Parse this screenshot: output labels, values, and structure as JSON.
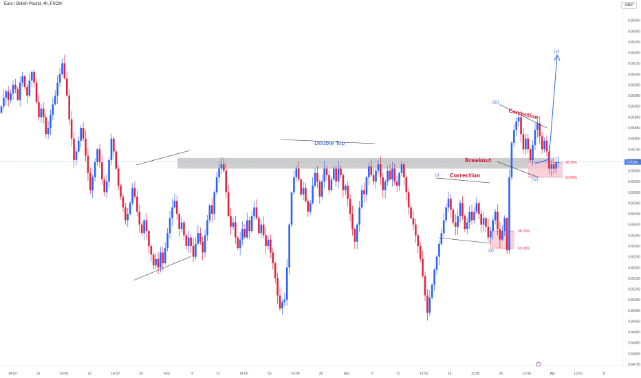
{
  "header": {
    "title": "Euro / British Pound, 4h, FXCM",
    "currency": "GBP"
  },
  "colors": {
    "up": "#2962ff",
    "down": "#e0243f",
    "zone": "#9e9e9e",
    "fib_zone": "#f7c6cf",
    "annot_red": "#d11e35",
    "annot_blue": "#1e55d0",
    "price_line": "#4a7ee8"
  },
  "chart_data": {
    "type": "candlestick",
    "symbol": "EUR/GBP",
    "timeframe": "4h",
    "ylim": [
      0.8475,
      0.864
    ],
    "y_ticks": [
      "0.86350",
      "0.86300",
      "0.86250",
      "0.86200",
      "0.86150",
      "0.86100",
      "0.86050",
      "0.86000",
      "0.85950",
      "0.85900",
      "0.85850",
      "0.85800",
      "0.85750",
      "0.85700",
      "0.85650",
      "0.85600",
      "0.85550",
      "0.85500",
      "0.85450",
      "0.85400",
      "0.85350",
      "0.85300",
      "0.85250",
      "0.85200",
      "0.85150",
      "0.85100",
      "0.85050",
      "0.85000",
      "0.84950",
      "0.84900",
      "0.84850",
      "0.84800",
      "0.84750"
    ],
    "x_ticks": [
      "14:00",
      "15",
      "14:00",
      "22",
      "14:00",
      "29",
      "Feb",
      "6",
      "12",
      "14:00",
      "19",
      "14:00",
      "26",
      "Mar",
      "6",
      "11",
      "13:00",
      "18",
      "13:00",
      "25",
      "13:00",
      "Apr",
      "13:00",
      "8"
    ],
    "current_price": "0.85691",
    "resistance_zone": [
      0.8566,
      0.8571
    ],
    "annotations": {
      "double_top": "Double Top",
      "breakout": "Breakout",
      "correction_1": "Correction",
      "correction_2": "Correction",
      "fib_low_382": "38.20%",
      "fib_low_50": "50.00%",
      "fib_high_382": "38.20%",
      "fib_high_50": "50.00%",
      "wave_i": "(i)",
      "wave_ii": "(ii)",
      "wave_iii": "(iii)",
      "wave_iv": "(iv)",
      "wave_v": "(v)"
    },
    "closes": [
      0.8595,
      0.8599,
      0.8602,
      0.8598,
      0.8601,
      0.8605,
      0.8603,
      0.8598,
      0.8606,
      0.8609,
      0.8604,
      0.86,
      0.8607,
      0.8611,
      0.8606,
      0.8597,
      0.859,
      0.8594,
      0.859,
      0.8582,
      0.8585,
      0.8591,
      0.8596,
      0.86,
      0.8606,
      0.861,
      0.8615,
      0.8608,
      0.86,
      0.8589,
      0.858,
      0.857,
      0.8574,
      0.8579,
      0.8585,
      0.858,
      0.8572,
      0.8564,
      0.8556,
      0.8562,
      0.8569,
      0.8575,
      0.8569,
      0.8561,
      0.8555,
      0.856,
      0.857,
      0.858,
      0.8574,
      0.8566,
      0.8558,
      0.8553,
      0.8548,
      0.8542,
      0.8545,
      0.855,
      0.8557,
      0.8553,
      0.8546,
      0.854,
      0.8536,
      0.8542,
      0.8537,
      0.853,
      0.8526,
      0.8521,
      0.8524,
      0.852,
      0.8527,
      0.8522,
      0.8529,
      0.8536,
      0.8543,
      0.8548,
      0.8551,
      0.8545,
      0.8538,
      0.8541,
      0.8535,
      0.853,
      0.8534,
      0.853,
      0.8525,
      0.8531,
      0.8536,
      0.8532,
      0.8527,
      0.8535,
      0.8542,
      0.8549,
      0.8545,
      0.8555,
      0.8562,
      0.8566,
      0.8568,
      0.8565,
      0.8555,
      0.8544,
      0.8539,
      0.8541,
      0.8534,
      0.8529,
      0.8533,
      0.8538,
      0.8534,
      0.8542,
      0.8537,
      0.8544,
      0.8548,
      0.8543,
      0.8536,
      0.854,
      0.8535,
      0.853,
      0.8533,
      0.8527,
      0.8522,
      0.8515,
      0.8507,
      0.8501,
      0.8504,
      0.8505,
      0.852,
      0.854,
      0.8555,
      0.8562,
      0.8566,
      0.8561,
      0.8554,
      0.8557,
      0.8551,
      0.8546,
      0.855,
      0.8558,
      0.8564,
      0.856,
      0.8553,
      0.856,
      0.8566,
      0.8563,
      0.8556,
      0.8561,
      0.8566,
      0.856,
      0.8566,
      0.8563,
      0.8556,
      0.8558,
      0.8552,
      0.8545,
      0.8538,
      0.8532,
      0.854,
      0.8548,
      0.8556,
      0.8554,
      0.8562,
      0.8567,
      0.8563,
      0.856,
      0.8565,
      0.8568,
      0.8562,
      0.8556,
      0.856,
      0.8565,
      0.8561,
      0.8566,
      0.856,
      0.8558,
      0.8564,
      0.8568,
      0.8562,
      0.8555,
      0.8548,
      0.8543,
      0.854,
      0.8535,
      0.853,
      0.8524,
      0.8516,
      0.8507,
      0.8499,
      0.8506,
      0.8512,
      0.8519,
      0.8525,
      0.8531,
      0.8536,
      0.8542,
      0.8548,
      0.8552,
      0.8547,
      0.8541,
      0.8539,
      0.8544,
      0.855,
      0.8544,
      0.8538,
      0.8541,
      0.8546,
      0.8542,
      0.8546,
      0.855,
      0.8545,
      0.854,
      0.8543,
      0.8539,
      0.8534,
      0.8537,
      0.8542,
      0.8546,
      0.8538,
      0.8533,
      0.8537,
      0.8543,
      0.8528,
      0.8562,
      0.8578,
      0.8584,
      0.8588,
      0.859,
      0.8582,
      0.8575,
      0.858,
      0.8575,
      0.857,
      0.8577,
      0.8584,
      0.8587,
      0.8581,
      0.8575,
      0.8579,
      0.8574,
      0.8566,
      0.8568,
      0.8566,
      0.8569,
      0.8569
    ]
  }
}
